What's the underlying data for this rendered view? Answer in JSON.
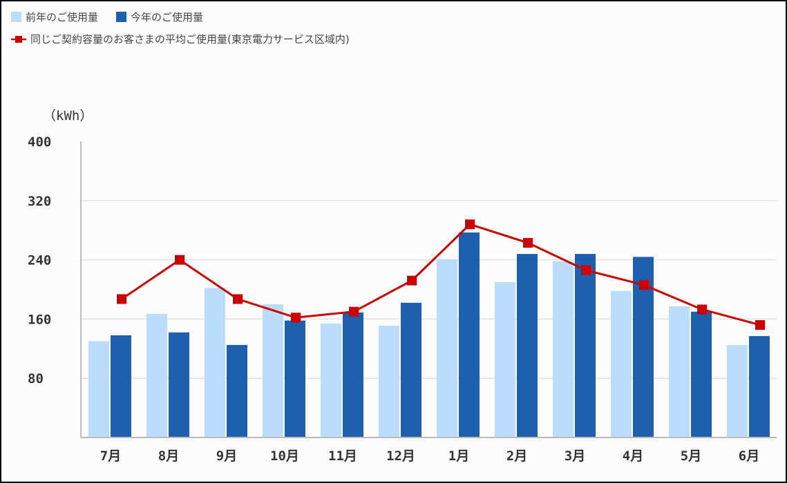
{
  "chart_data": {
    "type": "bar",
    "title": "",
    "ylabel": "（kWh）",
    "xlabel": "",
    "ylim": [
      0,
      400
    ],
    "yticks": [
      80,
      160,
      240,
      320,
      400
    ],
    "grid": true,
    "legend_placement": "top-left",
    "categories": [
      "7月",
      "8月",
      "9月",
      "10月",
      "11月",
      "12月",
      "1月",
      "2月",
      "3月",
      "4月",
      "5月",
      "6月"
    ],
    "series": [
      {
        "name": "前年のご使用量",
        "type": "bar",
        "color": "#bcdcfb",
        "values": [
          130,
          167,
          202,
          180,
          154,
          151,
          241,
          210,
          238,
          198,
          177,
          125
        ]
      },
      {
        "name": "今年のご使用量",
        "type": "bar",
        "color": "#1e60ad",
        "values": [
          138,
          142,
          125,
          158,
          169,
          182,
          277,
          248,
          248,
          244,
          170,
          137
        ]
      },
      {
        "name": "同じご契約容量のお客さまの平均ご使用量(東京電力サービス区域内)",
        "type": "line",
        "color": "#cc0000",
        "values": [
          187,
          240,
          187,
          162,
          170,
          212,
          288,
          263,
          226,
          206,
          173,
          152
        ]
      }
    ]
  }
}
